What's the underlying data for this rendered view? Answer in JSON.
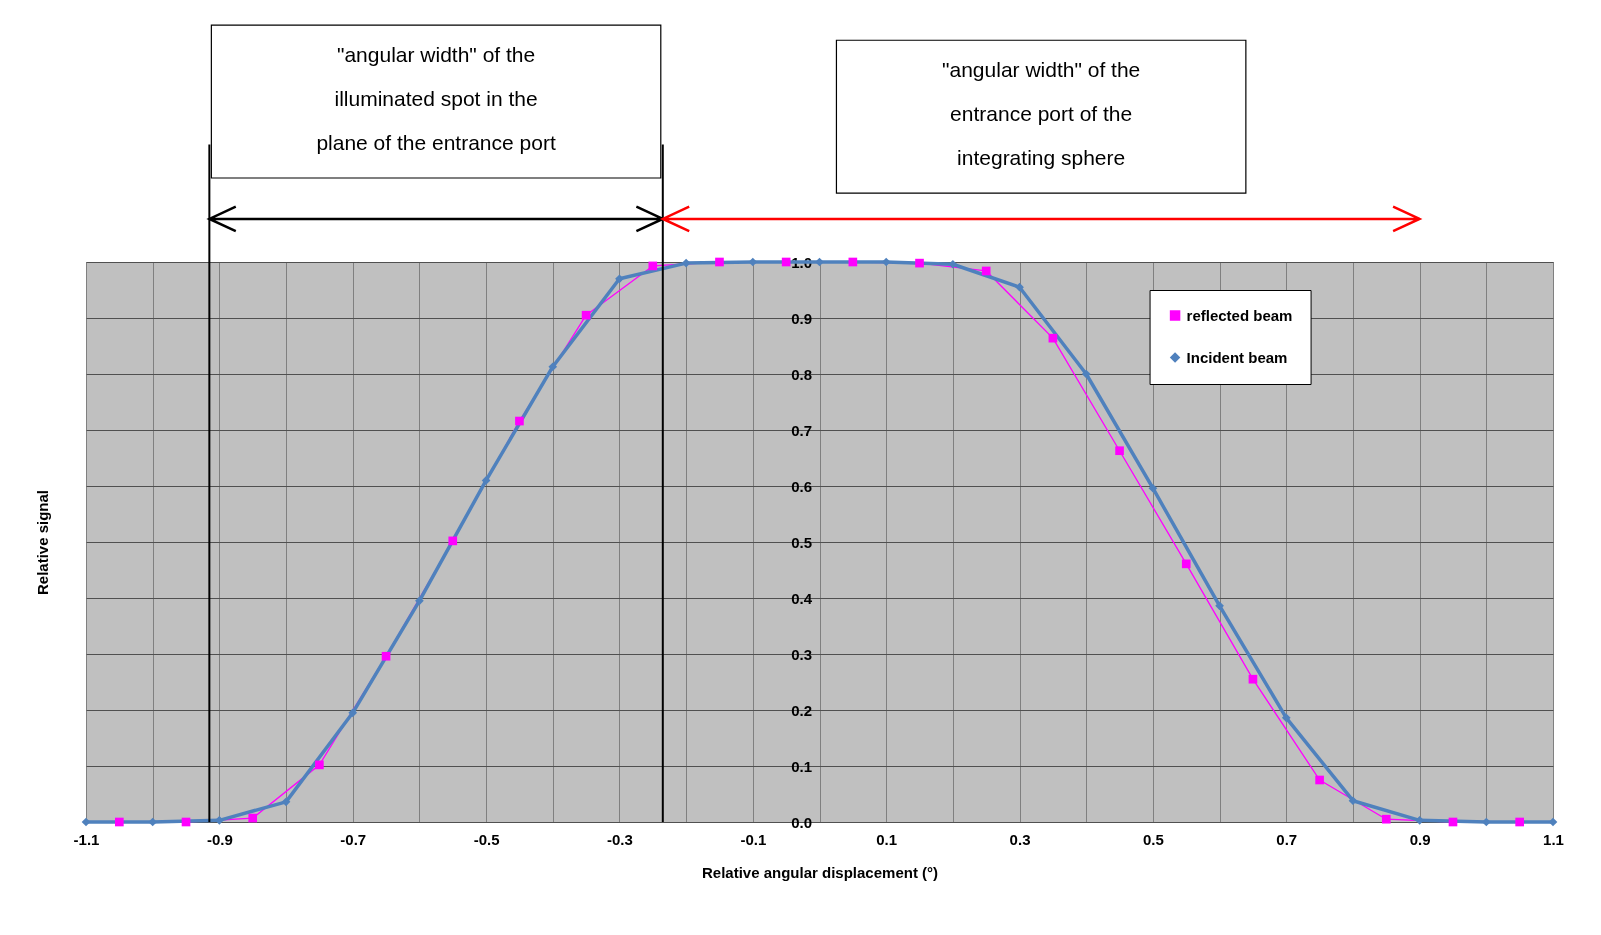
{
  "chart_data": {
    "type": "line",
    "xlabel": "Relative angular displacement (°)",
    "ylabel": "Relative signal",
    "xlim": [
      -1.1,
      1.1
    ],
    "ylim": [
      0,
      1.0
    ],
    "xticks": [
      -1.1,
      {
        "value": -1.0,
        "label": null
      },
      -0.9,
      {
        "value": -0.8,
        "label": null
      },
      -0.7,
      {
        "value": -0.6,
        "label": null
      },
      -0.5,
      {
        "value": -0.4,
        "label": null
      },
      -0.3,
      {
        "value": -0.2,
        "label": null
      },
      -0.1,
      {
        "value": 0.0,
        "label": null
      },
      0.1,
      {
        "value": 0.2,
        "label": null
      },
      0.3,
      {
        "value": 0.4,
        "label": null
      },
      0.5,
      {
        "value": 0.6,
        "label": null
      },
      0.7,
      {
        "value": 0.8,
        "label": null
      },
      0.9,
      {
        "value": 1.0,
        "label": null
      },
      1.1
    ],
    "yticks": [
      {
        "value": 0,
        "label": "0.0"
      },
      0.1,
      0.2,
      0.3,
      0.4,
      0.5,
      0.6,
      0.7,
      0.8,
      0.9,
      {
        "value": 1.0,
        "label": "1.0"
      }
    ],
    "grid": true,
    "legend": "top right",
    "series": [
      {
        "name": "reflected beam",
        "color": "#ff00ff",
        "marker": "square",
        "x": [
          -1.05,
          -0.95,
          -0.85,
          -0.75,
          -0.65,
          -0.55,
          -0.45,
          -0.35,
          -0.25,
          -0.15,
          -0.05,
          0.05,
          0.15,
          0.25,
          0.35,
          0.45,
          0.55,
          0.65,
          0.75,
          0.85,
          0.95,
          1.05
        ],
        "values": [
          0,
          0,
          0.007,
          0.102,
          0.296,
          0.502,
          0.716,
          0.905,
          0.993,
          1.0,
          1.0,
          1.0,
          0.998,
          0.984,
          0.864,
          0.663,
          0.461,
          0.255,
          0.075,
          0.005,
          0,
          0
        ]
      },
      {
        "name": "Incident beam",
        "color": "#4f81bd",
        "marker": "diamond",
        "x": [
          -1.1,
          -1.0,
          -0.9,
          -0.8,
          -0.7,
          -0.6,
          -0.5,
          -0.4,
          -0.3,
          -0.2,
          -0.1,
          0.0,
          0.1,
          0.2,
          0.3,
          0.4,
          0.5,
          0.6,
          0.7,
          0.8,
          0.9,
          1.0,
          1.1
        ],
        "values": [
          0,
          0,
          0.003,
          0.036,
          0.195,
          0.395,
          0.61,
          0.813,
          0.97,
          0.998,
          1.0,
          1.0,
          1.0,
          0.996,
          0.955,
          0.8,
          0.596,
          0.386,
          0.186,
          0.038,
          0.003,
          0,
          0
        ]
      }
    ],
    "ref_lines": [
      {
        "axis": "x",
        "value": -0.915,
        "color": "#000000"
      },
      {
        "axis": "x",
        "value": -0.235,
        "color": "#000000"
      }
    ],
    "annotations": [
      "\"angular width\" of the\nilluminated spot in the\nplane of the entrance port",
      "\"angular width\" of the\nentrance port of the\nintegrating sphere"
    ]
  }
}
